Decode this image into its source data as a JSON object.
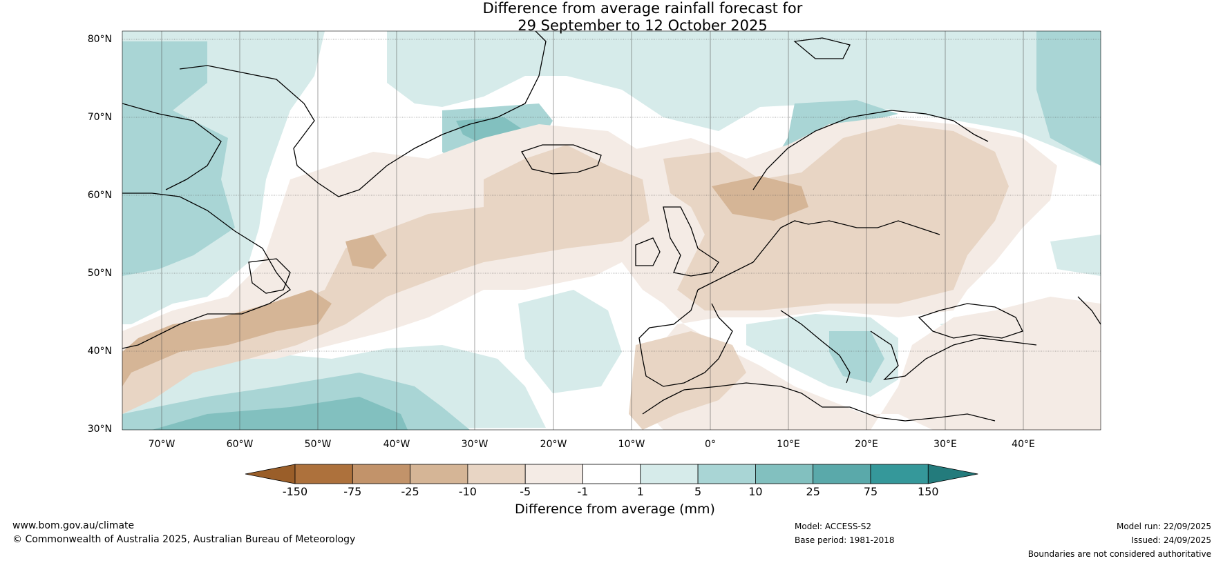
{
  "map": {
    "title_line1": "Difference from average rainfall forecast for",
    "title_line2": "29 September to 12 October 2025",
    "lat_labels": [
      "80°N",
      "70°N",
      "60°N",
      "50°N",
      "40°N",
      "30°N"
    ],
    "lon_labels": [
      "70°W",
      "60°W",
      "50°W",
      "40°W",
      "30°W",
      "20°W",
      "10°W",
      "0°",
      "10°E",
      "20°E",
      "30°E",
      "40°E"
    ],
    "extent": {
      "lon_min": -75,
      "lon_max": 50,
      "lat_min": 30,
      "lat_max": 81
    }
  },
  "colorbar": {
    "title": "Difference from average (mm)",
    "tick_labels": [
      "-150",
      "-75",
      "-25",
      "-10",
      "-5",
      "-1",
      "1",
      "5",
      "10",
      "25",
      "75",
      "150"
    ],
    "colors": [
      "#9a5e29",
      "#ad713c",
      "#c2936a",
      "#d5b596",
      "#e8d5c4",
      "#f4ebe5",
      "#ffffff",
      "#d6ebea",
      "#a9d5d5",
      "#82c0bf",
      "#5aa9aa",
      "#35989a",
      "#237b7c"
    ]
  },
  "footer": {
    "website": "www.bom.gov.au/climate",
    "copyright": "© Commonwealth of Australia 2025, Australian Bureau of Meteorology",
    "model": "Model: ACCESS-S2",
    "base_period": "Base period: 1981-2018",
    "model_run": "Model run: 22/09/2025",
    "issued": "Issued: 24/09/2025",
    "disclaimer": "Boundaries are not considered authoritative"
  }
}
